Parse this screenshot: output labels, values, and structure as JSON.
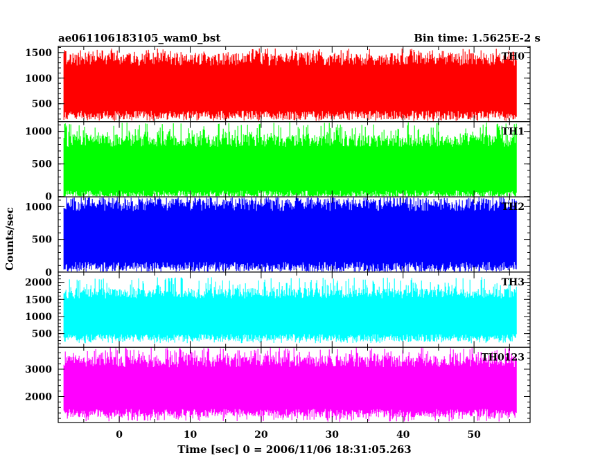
{
  "header": {
    "left_title": "ae061106183105_wam0_bst",
    "right_title": "Bin time: 1.5625E-2 s"
  },
  "chart_data": {
    "type": "line",
    "xlabel": "Time [sec] 0 = 2006/11/06 18:31:05.263",
    "ylabel": "Counts/sec",
    "xlim": [
      -8.6,
      57.9
    ],
    "x_ticks": [
      0,
      10,
      20,
      30,
      40,
      50
    ],
    "x_data_range": [
      -7.8,
      56.0
    ],
    "bin_time_s": 0.015625,
    "panels": [
      {
        "name": "TH0",
        "color": "#ff0000",
        "ylim": [
          150,
          1620
        ],
        "y_ticks": [
          500,
          1000,
          1500
        ],
        "band_low": 310,
        "band_high": 1320,
        "spike_max": 1580,
        "spike_min": 160
      },
      {
        "name": "TH1",
        "color": "#00ff00",
        "ylim": [
          -5,
          1150
        ],
        "y_ticks": [
          0,
          500,
          1000
        ],
        "band_low": 50,
        "band_high": 820,
        "spike_max": 1140,
        "spike_min": 0
      },
      {
        "name": "TH2",
        "color": "#0000ff",
        "ylim": [
          0,
          1150
        ],
        "y_ticks": [
          0,
          500,
          1000
        ],
        "band_low": 110,
        "band_high": 1000,
        "spike_max": 1150,
        "spike_min": 0
      },
      {
        "name": "TH3",
        "color": "#00ffff",
        "ylim": [
          100,
          2300
        ],
        "y_ticks": [
          500,
          1000,
          1500,
          2000
        ],
        "band_low": 420,
        "band_high": 1620,
        "spike_max": 2150,
        "spike_min": 220
      },
      {
        "name": "TH0123",
        "color": "#ff00ff",
        "ylim": [
          1050,
          3800
        ],
        "y_ticks": [
          2000,
          3000
        ],
        "band_low": 1450,
        "band_high": 3200,
        "spike_max": 3800,
        "spike_min": 1080
      }
    ]
  }
}
